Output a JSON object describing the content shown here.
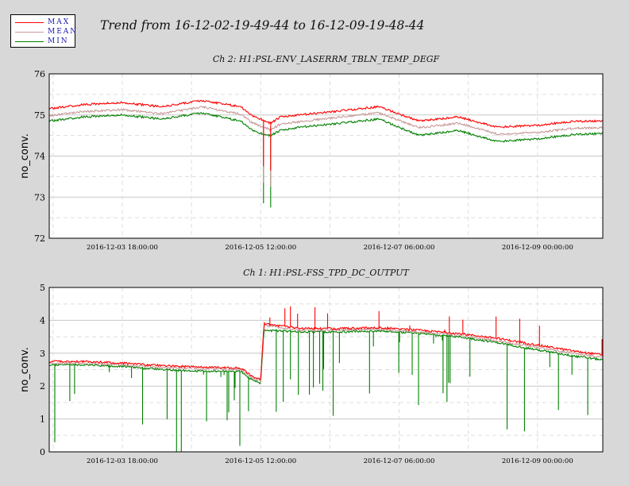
{
  "legend": [
    {
      "label": "MAX",
      "color": "#ff0000"
    },
    {
      "label": "MEAN",
      "color": "#c89a9a"
    },
    {
      "label": "MIN",
      "color": "#008000"
    }
  ],
  "title": "Trend from 16-12-02-19-49-44 to 16-12-09-19-48-44",
  "colors": {
    "max": "#ff0000",
    "mean": "#c89a9a",
    "min": "#008000",
    "background": "#d8d8d8",
    "plot_bg": "#ffffff",
    "grid": "#c8c8c8"
  },
  "chart_data": [
    {
      "type": "line",
      "title": "Ch 2: H1:PSL-ENV_LASERRM_TBLN_TEMP_DEGF",
      "ylabel": "no_conv.",
      "ylim": [
        72,
        76
      ],
      "yticks": [
        "72",
        "73",
        "74",
        "75",
        "76"
      ],
      "xlabel": "",
      "xlim": [
        "2016-12-02 19:49:44",
        "2016-12-09 19:48:44"
      ],
      "xticks": [
        "2016-12-03 18:00:00",
        "2016-12-05 12:00:00",
        "2016-12-07 06:00:00",
        "2016-12-09 00:00:00"
      ],
      "grid": true,
      "x": [
        "2016-12-02 19:49",
        "2016-12-03 06:00",
        "2016-12-03 18:00",
        "2016-12-04 06:00",
        "2016-12-04 18:00",
        "2016-12-05 06:00",
        "2016-12-05 09:00",
        "2016-12-05 12:00",
        "2016-12-05 15:00",
        "2016-12-05 18:00",
        "2016-12-06 00:00",
        "2016-12-06 12:00",
        "2016-12-07 00:00",
        "2016-12-07 12:00",
        "2016-12-08 00:00",
        "2016-12-08 12:00",
        "2016-12-09 00:00",
        "2016-12-09 12:00",
        "2016-12-09 19:48"
      ],
      "series": [
        {
          "name": "MAX",
          "values": [
            75.15,
            75.25,
            75.3,
            75.2,
            75.35,
            75.2,
            75.0,
            74.9,
            74.8,
            74.95,
            75.0,
            75.1,
            75.2,
            74.85,
            74.95,
            74.7,
            74.75,
            74.85,
            74.85
          ]
        },
        {
          "name": "MEAN",
          "values": [
            74.98,
            75.08,
            75.13,
            75.03,
            75.2,
            75.02,
            74.83,
            74.73,
            74.64,
            74.78,
            74.84,
            74.95,
            75.05,
            74.69,
            74.8,
            74.53,
            74.58,
            74.68,
            74.69
          ]
        },
        {
          "name": "MIN",
          "values": [
            74.85,
            74.95,
            75.0,
            74.9,
            75.05,
            74.85,
            74.65,
            74.55,
            74.5,
            74.62,
            74.7,
            74.8,
            74.9,
            74.5,
            74.62,
            74.35,
            74.42,
            74.53,
            74.55
          ]
        }
      ],
      "dips": [
        {
          "x": "2016-12-05 12:50",
          "min": 72.85
        },
        {
          "x": "2016-12-05 15:00",
          "min": 72.75
        }
      ]
    },
    {
      "type": "line",
      "title": "Ch 1: H1:PSL-FSS_TPD_DC_OUTPUT",
      "ylabel": "no_conv.",
      "ylim": [
        0,
        5
      ],
      "yticks": [
        "0",
        "1",
        "2",
        "3",
        "4",
        "5"
      ],
      "xlabel": "",
      "xlim": [
        "2016-12-02 19:49:44",
        "2016-12-09 19:48:44"
      ],
      "xticks": [
        "2016-12-03 18:00:00",
        "2016-12-05 12:00:00",
        "2016-12-07 06:00:00",
        "2016-12-09 00:00:00"
      ],
      "grid": true,
      "x": [
        "2016-12-02 19:49",
        "2016-12-03 06:00",
        "2016-12-03 18:00",
        "2016-12-04 06:00",
        "2016-12-04 18:00",
        "2016-12-05 06:00",
        "2016-12-05 09:30",
        "2016-12-05 12:00",
        "2016-12-05 13:00",
        "2016-12-06 00:00",
        "2016-12-06 12:00",
        "2016-12-07 00:00",
        "2016-12-07 12:00",
        "2016-12-08 00:00",
        "2016-12-08 12:00",
        "2016-12-09 00:00",
        "2016-12-09 12:00",
        "2016-12-09 19:48"
      ],
      "series": [
        {
          "name": "MAX",
          "values": [
            2.75,
            2.75,
            2.7,
            2.62,
            2.58,
            2.55,
            2.3,
            2.2,
            3.9,
            3.75,
            3.75,
            3.78,
            3.7,
            3.6,
            3.45,
            3.25,
            3.05,
            2.95
          ]
        },
        {
          "name": "MEAN",
          "values": [
            2.7,
            2.7,
            2.65,
            2.57,
            2.53,
            2.5,
            2.25,
            2.15,
            3.85,
            3.7,
            3.7,
            3.73,
            3.65,
            3.55,
            3.38,
            3.18,
            2.98,
            2.88
          ]
        },
        {
          "name": "MIN",
          "values": [
            2.65,
            2.65,
            2.6,
            2.5,
            2.45,
            2.45,
            2.18,
            2.08,
            3.7,
            3.65,
            3.65,
            3.68,
            3.6,
            3.5,
            3.32,
            3.1,
            2.9,
            2.8
          ]
        }
      ]
    }
  ]
}
